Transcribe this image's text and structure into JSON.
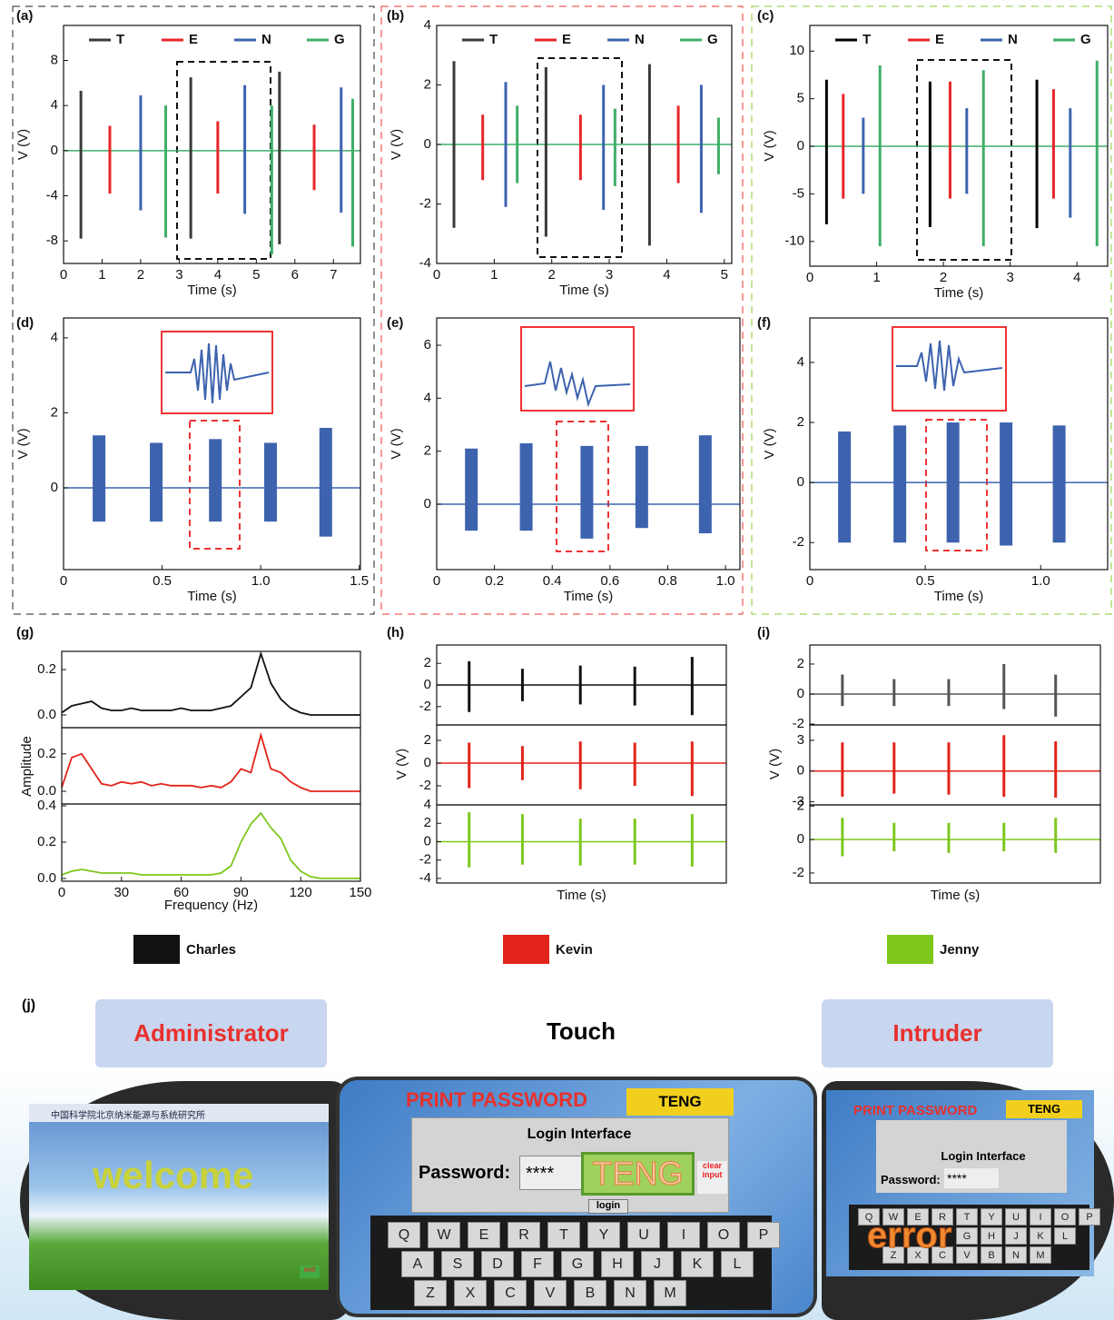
{
  "chart_data": [
    {
      "type": "spike",
      "label": "(a)",
      "x_label": "Time (s)",
      "y_label": "V (V)",
      "xlim": [
        0,
        7.7
      ],
      "xticks": [
        0,
        1,
        2,
        3,
        4,
        5,
        6,
        7
      ],
      "legend": true,
      "panels": [
        {
          "ylim": [
            -10,
            11.1
          ],
          "yticks": [
            -8,
            -4,
            0,
            4,
            8
          ],
          "series": [
            {
              "name": "T",
              "color": "#3a3a3a",
              "x": [
                0.45,
                3.3,
                5.6
              ],
              "high": [
                5.3,
                6.5,
                7
              ],
              "low": [
                -7.8,
                -7.8,
                -8.3
              ]
            },
            {
              "name": "E",
              "color": "#e8262b",
              "x": [
                1.2,
                4.0,
                6.5
              ],
              "high": [
                2.2,
                2.6,
                2.3
              ],
              "low": [
                -3.8,
                -3.8,
                -3.5
              ]
            },
            {
              "name": "N",
              "color": "#3d63ae",
              "x": [
                2.0,
                4.7,
                7.2
              ],
              "high": [
                4.9,
                5.8,
                5.6
              ],
              "low": [
                -5.3,
                -5.6,
                -5.5
              ]
            },
            {
              "name": "G",
              "color": "#3fae68",
              "x": [
                2.65,
                5.4,
                7.5
              ],
              "high": [
                4,
                4,
                4.6
              ],
              "low": [
                -7.7,
                -9.2,
                -8.5
              ]
            }
          ]
        }
      ]
    },
    {
      "type": "spike",
      "label": "(b)",
      "x_label": "Time (s)",
      "y_label": "V (V)",
      "xlim": [
        0,
        5.13
      ],
      "xticks": [
        0,
        1,
        2,
        3,
        4,
        5
      ],
      "legend": true,
      "panels": [
        {
          "ylim": [
            -4,
            4
          ],
          "yticks": [
            -4,
            -2,
            0,
            2,
            4
          ],
          "series": [
            {
              "name": "T",
              "color": "#3a3a3a",
              "x": [
                0.3,
                1.9,
                3.7
              ],
              "high": [
                2.8,
                2.6,
                2.7
              ],
              "low": [
                -2.8,
                -3.1,
                -3.4
              ]
            },
            {
              "name": "E",
              "color": "#e8262b",
              "x": [
                0.8,
                2.5,
                4.2
              ],
              "high": [
                1,
                1,
                1.3
              ],
              "low": [
                -1.2,
                -1.2,
                -1.3
              ]
            },
            {
              "name": "N",
              "color": "#3d63ae",
              "x": [
                1.2,
                2.9,
                4.6
              ],
              "high": [
                2.1,
                2,
                2
              ],
              "low": [
                -2.1,
                -2.2,
                -2.3
              ]
            },
            {
              "name": "G",
              "color": "#3fae68",
              "x": [
                1.4,
                3.1,
                4.9
              ],
              "high": [
                1.3,
                1.2,
                0.9
              ],
              "low": [
                -1.3,
                -1.4,
                -1
              ]
            }
          ]
        }
      ]
    },
    {
      "type": "spike",
      "label": "(c)",
      "x_label": "Time (s)",
      "y_label": "V (V)",
      "xlim": [
        0,
        4.46
      ],
      "xticks": [
        0,
        1,
        2,
        3,
        4
      ],
      "legend": true,
      "panels": [
        {
          "ylim": [
            -12.6,
            12.7
          ],
          "yticks": [
            -10,
            -5,
            0,
            5,
            10
          ],
          "series": [
            {
              "name": "T",
              "color": "#000000",
              "x": [
                0.25,
                1.8,
                3.4
              ],
              "high": [
                7,
                6.8,
                7
              ],
              "low": [
                -8.2,
                -8.5,
                -8.6
              ]
            },
            {
              "name": "E",
              "color": "#e8262b",
              "x": [
                0.5,
                2.1,
                3.65
              ],
              "high": [
                5.5,
                6.8,
                6
              ],
              "low": [
                -5.5,
                -5.5,
                -5.5
              ]
            },
            {
              "name": "N",
              "color": "#3d63ae",
              "x": [
                0.8,
                2.35,
                3.9
              ],
              "high": [
                3,
                4,
                4
              ],
              "low": [
                -5,
                -5,
                -7.5
              ]
            },
            {
              "name": "G",
              "color": "#3fae68",
              "x": [
                1.05,
                2.6,
                4.3
              ],
              "high": [
                8.5,
                8,
                9
              ],
              "low": [
                -10.5,
                -10.5,
                -10.5
              ]
            }
          ]
        }
      ]
    },
    {
      "type": "burst",
      "label": "(d)",
      "x_label": "Time (s)",
      "y_label": "V (V)",
      "xlim": [
        0,
        1.506
      ],
      "xticks": [
        0,
        0.5,
        {
          "value": 1,
          "label": "1.0"
        },
        1.5
      ],
      "panels": [
        {
          "ylim": [
            -2.18,
            4.53
          ],
          "yticks": [
            0,
            2,
            4
          ],
          "series": [
            {
              "color": "#3d63ae",
              "x": [
                0.18,
                0.47,
                0.77,
                1.05,
                1.33
              ],
              "high": [
                1.4,
                1.2,
                1.3,
                1.2,
                1.6
              ],
              "low": [
                -0.9,
                -0.9,
                -0.9,
                -0.9,
                -1.3
              ]
            }
          ]
        }
      ]
    },
    {
      "type": "burst",
      "label": "(e)",
      "x_label": "Time (s)",
      "y_label": "V (V)",
      "xlim": [
        0,
        1.05
      ],
      "xticks": [
        0,
        0.2,
        0.4,
        0.6,
        0.8,
        {
          "value": 1,
          "label": "1.0"
        }
      ],
      "panels": [
        {
          "ylim": [
            -2.47,
            7.03
          ],
          "yticks": [
            0,
            2,
            4,
            6
          ],
          "series": [
            {
              "color": "#3d63ae",
              "x": [
                0.12,
                0.31,
                0.52,
                0.71,
                0.93
              ],
              "high": [
                2.1,
                2.3,
                2.2,
                2.2,
                2.6
              ],
              "low": [
                -1,
                -1,
                -1.3,
                -0.9,
                -1.1
              ]
            }
          ]
        }
      ]
    },
    {
      "type": "burst",
      "label": "(f)",
      "x_label": "Time (s)",
      "y_label": "V (V)",
      "xlim": [
        0,
        1.29
      ],
      "xticks": [
        0,
        0.5,
        {
          "value": 1,
          "label": "1.0"
        }
      ],
      "panels": [
        {
          "ylim": [
            -2.9,
            5.48
          ],
          "yticks": [
            -2,
            0,
            2,
            4
          ],
          "series": [
            {
              "color": "#3d63ae",
              "x": [
                0.15,
                0.39,
                0.62,
                0.85,
                1.08
              ],
              "high": [
                1.7,
                1.9,
                2,
                2,
                1.9
              ],
              "low": [
                -2,
                -2,
                -2,
                -2.1,
                -2
              ]
            }
          ]
        }
      ]
    },
    {
      "type": "line",
      "label": "(g)",
      "x_label": "Frequency (Hz)",
      "y_label": "Amplitude",
      "xlim": [
        0,
        150
      ],
      "xticks": [
        0,
        30,
        60,
        90,
        120,
        150
      ],
      "x": [
        0,
        5,
        10,
        15,
        20,
        25,
        30,
        35,
        40,
        45,
        50,
        55,
        60,
        65,
        70,
        75,
        80,
        85,
        90,
        95,
        100,
        105,
        110,
        115,
        120,
        125,
        130,
        135,
        140,
        145,
        150
      ],
      "panels": [
        {
          "ylim": [
            -0.056,
            0.28
          ],
          "yticks": [
            {
              "value": 0,
              "label": "0.0"
            },
            0.2
          ],
          "series": [
            {
              "name": "Charles",
              "color": "#111111",
              "values": [
                0.01,
                0.04,
                0.05,
                0.06,
                0.03,
                0.02,
                0.02,
                0.03,
                0.02,
                0.02,
                0.02,
                0.02,
                0.03,
                0.02,
                0.02,
                0.02,
                0.03,
                0.04,
                0.08,
                0.12,
                0.27,
                0.14,
                0.07,
                0.03,
                0.01,
                0,
                0,
                0,
                0,
                0,
                0
              ]
            }
          ]
        },
        {
          "ylim": [
            -0.068,
            0.34
          ],
          "yticks": [
            {
              "value": 0,
              "label": "0.0"
            },
            0.2
          ],
          "series": [
            {
              "name": "Kevin",
              "color": "#e2231a",
              "values": [
                0.02,
                0.18,
                0.2,
                0.12,
                0.04,
                0.03,
                0.05,
                0.04,
                0.05,
                0.03,
                0.04,
                0.03,
                0.03,
                0.03,
                0.02,
                0.03,
                0.02,
                0.05,
                0.12,
                0.1,
                0.3,
                0.12,
                0.1,
                0.05,
                0.02,
                0,
                0,
                0,
                0,
                0,
                0
              ]
            }
          ]
        },
        {
          "ylim": [
            -0.015,
            0.41
          ],
          "yticks": [
            {
              "value": 0,
              "label": "0.0"
            },
            0.2,
            0.4
          ],
          "series": [
            {
              "name": "Jenny",
              "color": "#7dc71c",
              "values": [
                0.02,
                0.04,
                0.05,
                0.04,
                0.03,
                0.03,
                0.03,
                0.03,
                0.02,
                0.02,
                0.02,
                0.02,
                0.02,
                0.02,
                0.02,
                0.02,
                0.03,
                0.07,
                0.2,
                0.3,
                0.36,
                0.28,
                0.22,
                0.1,
                0.04,
                0.01,
                0,
                0,
                0,
                0,
                0
              ]
            }
          ]
        }
      ]
    },
    {
      "type": "spike",
      "label": "(h)",
      "x_label": "Time (s)",
      "y_label": "V (V)",
      "xlim": [
        0,
        5
      ],
      "panels": [
        {
          "ylim": [
            -3.7,
            3.7
          ],
          "yticks": [
            -2,
            0,
            2
          ],
          "series": [
            {
              "name": "Charles",
              "color": "#111111",
              "x": [
                0.56,
                1.48,
                2.48,
                3.42,
                4.41
              ],
              "high": [
                2.2,
                1.5,
                1.8,
                1.7,
                2.6
              ],
              "low": [
                -2.5,
                -1.5,
                -1.8,
                -1.9,
                -2.8
              ]
            }
          ]
        },
        {
          "ylim": [
            -3.68,
            3.36
          ],
          "yticks": [
            -2,
            0,
            2
          ],
          "series": [
            {
              "name": "Kevin",
              "color": "#e2231a",
              "x": [
                0.56,
                1.48,
                2.48,
                3.42,
                4.41
              ],
              "high": [
                1.8,
                1.5,
                1.9,
                1.8,
                1.9
              ],
              "low": [
                -2.2,
                -1.5,
                -2.3,
                -2,
                -2.9
              ]
            }
          ]
        },
        {
          "ylim": [
            -4.5,
            4
          ],
          "yticks": [
            -4,
            -2,
            0,
            2,
            4
          ],
          "series": [
            {
              "name": "Jenny",
              "color": "#7dc71c",
              "x": [
                0.56,
                1.48,
                2.48,
                3.42,
                4.41
              ],
              "high": [
                3.2,
                3,
                2.5,
                2.5,
                3
              ],
              "low": [
                -2.8,
                -2.5,
                -2.6,
                -2.5,
                -2.7
              ]
            }
          ]
        }
      ]
    },
    {
      "type": "spike",
      "label": "(i)",
      "x_label": "Time (s)",
      "y_label": "V (V)",
      "xlim": [
        0,
        5
      ],
      "panels": [
        {
          "ylim": [
            -2.06,
            3.27
          ],
          "yticks": [
            -2,
            0,
            2
          ],
          "series": [
            {
              "name": "Charles",
              "color": "#555555",
              "x": [
                0.56,
                1.45,
                2.39,
                3.34,
                4.23
              ],
              "high": [
                1.3,
                1,
                1,
                2,
                1.3
              ],
              "low": [
                -0.8,
                -0.8,
                -0.8,
                -1,
                -1.5
              ]
            }
          ]
        },
        {
          "ylim": [
            -3.3,
            4.5
          ],
          "yticks": [
            -3,
            0,
            3
          ],
          "series": [
            {
              "name": "Kevin",
              "color": "#e2231a",
              "x": [
                0.56,
                1.45,
                2.39,
                3.34,
                4.23
              ],
              "high": [
                2.8,
                2.8,
                2.8,
                3.5,
                2.9
              ],
              "low": [
                -2.5,
                -2.2,
                -2.3,
                -2.5,
                -2.6
              ]
            }
          ]
        },
        {
          "ylim": [
            -2.6,
            2.07
          ],
          "yticks": [
            -2,
            0,
            2
          ],
          "series": [
            {
              "name": "Jenny",
              "color": "#7dc71c",
              "x": [
                0.56,
                1.45,
                2.39,
                3.34,
                4.23
              ],
              "high": [
                1.3,
                1,
                1,
                1,
                1.3
              ],
              "low": [
                -1,
                -0.7,
                -0.8,
                -0.7,
                -0.8
              ]
            }
          ]
        }
      ]
    }
  ],
  "panel_j": {
    "label": "(j)",
    "roles": {
      "left": "Administrator",
      "center": "Touch",
      "right": "Intruder"
    },
    "admin_screen": {
      "banner": "中国科学院北京纳米能源与系统研究所",
      "message": "welcome",
      "button": "exit"
    },
    "login_screen": {
      "title": "PRINT PASSWORD",
      "tag": "TENG",
      "heading": "Login Interface",
      "password_label": "Password:",
      "password_value": "****",
      "popup": "TENG",
      "clear": "clear input",
      "login": "login",
      "keys": [
        [
          "Q",
          "W",
          "E",
          "R",
          "T",
          "Y",
          "U",
          "I",
          "O",
          "P"
        ],
        [
          "A",
          "S",
          "D",
          "F",
          "G",
          "H",
          "J",
          "K",
          "L"
        ],
        [
          "Z",
          "X",
          "C",
          "V",
          "B",
          "N",
          "M"
        ]
      ]
    },
    "intruder_screen": {
      "title": "PRINT PASSWORD",
      "tag": "TENG",
      "heading": "Login Interface",
      "password_label": "Password:",
      "password_value": "****",
      "message": "error",
      "keys": [
        [
          "Q",
          "W",
          "E",
          "R",
          "T",
          "Y",
          "U",
          "I",
          "O",
          "P"
        ],
        [
          "G",
          "H",
          "J",
          "K",
          "L"
        ],
        [
          "Z",
          "X",
          "C",
          "V",
          "B",
          "N",
          "M"
        ]
      ]
    }
  }
}
